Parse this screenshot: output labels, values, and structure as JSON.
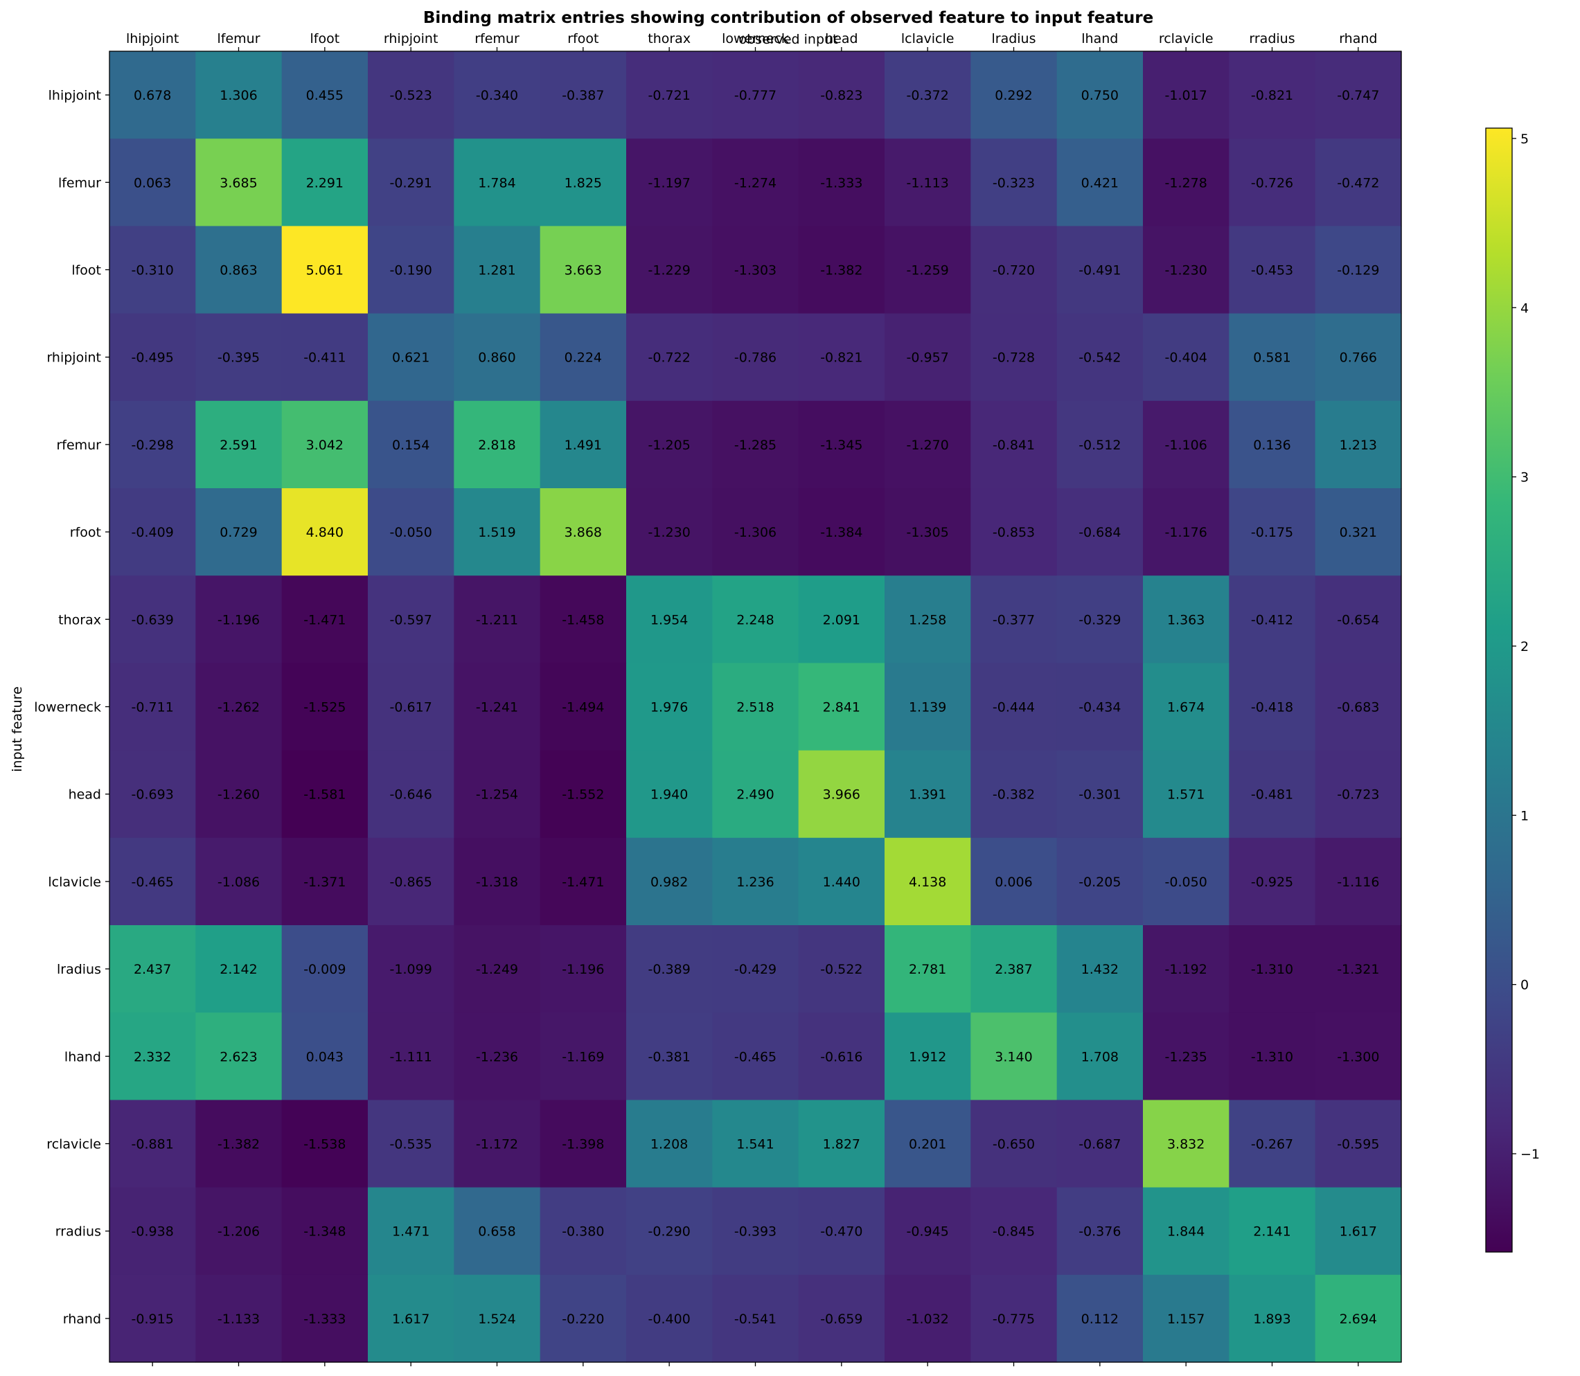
{
  "chart_data": {
    "type": "heatmap",
    "title": "Binding matrix entries showing contribution of observed feature to input feature",
    "xlabel": "observed input",
    "ylabel": "input feature",
    "x_categories": [
      "lhipjoint",
      "lfemur",
      "lfoot",
      "rhipjoint",
      "rfemur",
      "rfoot",
      "thorax",
      "lowerneck",
      "head",
      "lclavicle",
      "lradius",
      "lhand",
      "rclavicle",
      "rradius",
      "rhand"
    ],
    "y_categories": [
      "lhipjoint",
      "lfemur",
      "lfoot",
      "rhipjoint",
      "rfemur",
      "rfoot",
      "thorax",
      "lowerneck",
      "head",
      "lclavicle",
      "lradius",
      "lhand",
      "rclavicle",
      "rradius",
      "rhand"
    ],
    "values": [
      [
        0.678,
        1.306,
        0.455,
        -0.523,
        -0.34,
        -0.387,
        -0.721,
        -0.777,
        -0.823,
        -0.372,
        0.292,
        0.75,
        -1.017,
        -0.821,
        -0.747
      ],
      [
        0.063,
        3.685,
        2.291,
        -0.291,
        1.784,
        1.825,
        -1.197,
        -1.274,
        -1.333,
        -1.113,
        -0.323,
        0.421,
        -1.278,
        -0.726,
        -0.472
      ],
      [
        -0.31,
        0.863,
        5.061,
        -0.19,
        1.281,
        3.663,
        -1.229,
        -1.303,
        -1.382,
        -1.259,
        -0.72,
        -0.491,
        -1.23,
        -0.453,
        -0.129
      ],
      [
        -0.495,
        -0.395,
        -0.411,
        0.621,
        0.86,
        0.224,
        -0.722,
        -0.786,
        -0.821,
        -0.957,
        -0.728,
        -0.542,
        -0.404,
        0.581,
        0.766
      ],
      [
        -0.298,
        2.591,
        3.042,
        0.154,
        2.818,
        1.491,
        -1.205,
        -1.285,
        -1.345,
        -1.27,
        -0.841,
        -0.512,
        -1.106,
        0.136,
        1.213
      ],
      [
        -0.409,
        0.729,
        4.84,
        -0.05,
        1.519,
        3.868,
        -1.23,
        -1.306,
        -1.384,
        -1.305,
        -0.853,
        -0.684,
        -1.176,
        -0.175,
        0.321
      ],
      [
        -0.639,
        -1.196,
        -1.471,
        -0.597,
        -1.211,
        -1.458,
        1.954,
        2.248,
        2.091,
        1.258,
        -0.377,
        -0.329,
        1.363,
        -0.412,
        -0.654
      ],
      [
        -0.711,
        -1.262,
        -1.525,
        -0.617,
        -1.241,
        -1.494,
        1.976,
        2.518,
        2.841,
        1.139,
        -0.444,
        -0.434,
        1.674,
        -0.418,
        -0.683
      ],
      [
        -0.693,
        -1.26,
        -1.581,
        -0.646,
        -1.254,
        -1.552,
        1.94,
        2.49,
        3.966,
        1.391,
        -0.382,
        -0.301,
        1.571,
        -0.481,
        -0.723
      ],
      [
        -0.465,
        -1.086,
        -1.371,
        -0.865,
        -1.318,
        -1.471,
        0.982,
        1.236,
        1.44,
        4.138,
        0.006,
        -0.205,
        -0.05,
        -0.925,
        -1.116
      ],
      [
        2.437,
        2.142,
        -0.009,
        -1.099,
        -1.249,
        -1.196,
        -0.389,
        -0.429,
        -0.522,
        2.781,
        2.387,
        1.432,
        -1.192,
        -1.31,
        -1.321
      ],
      [
        2.332,
        2.623,
        0.043,
        -1.111,
        -1.236,
        -1.169,
        -0.381,
        -0.465,
        -0.616,
        1.912,
        3.14,
        1.708,
        -1.235,
        -1.31,
        -1.3
      ],
      [
        -0.881,
        -1.382,
        -1.538,
        -0.535,
        -1.172,
        -1.398,
        1.208,
        1.541,
        1.827,
        0.201,
        -0.65,
        -0.687,
        3.832,
        -0.267,
        -0.595
      ],
      [
        -0.938,
        -1.206,
        -1.348,
        1.471,
        0.658,
        -0.38,
        -0.29,
        -0.393,
        -0.47,
        -0.945,
        -0.845,
        -0.376,
        1.844,
        2.141,
        1.617
      ],
      [
        -0.915,
        -1.133,
        -1.333,
        1.617,
        1.524,
        -0.22,
        -0.4,
        -0.541,
        -0.659,
        -1.032,
        -0.775,
        0.112,
        1.157,
        1.893,
        2.694
      ]
    ],
    "value_labels_precision": 3,
    "colormap": "viridis",
    "colorbar": {
      "vmin": -1.581,
      "vmax": 5.061,
      "ticks": [
        -1,
        0,
        1,
        2,
        3,
        4,
        5
      ],
      "tick_labels": [
        "−1",
        "0",
        "1",
        "2",
        "3",
        "4",
        "5"
      ]
    },
    "x_axis_position": "top",
    "grid": false
  }
}
